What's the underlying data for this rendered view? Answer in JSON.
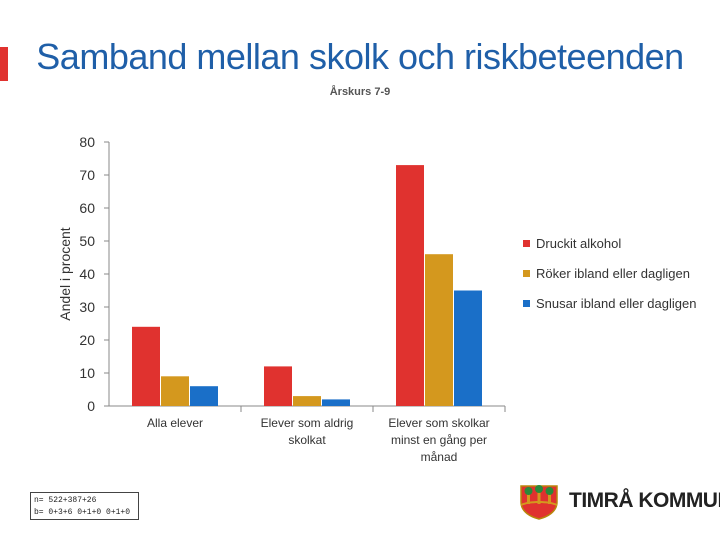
{
  "title": "Samband mellan skolk och riskbeteenden",
  "subtitle": "Årskurs 7-9",
  "note": {
    "line1": "n= 522+387+26",
    "line2": "b= 0+3+6 0+1+0 0+1+0"
  },
  "logo": {
    "text": "TIMRÅ KOMMUN",
    "icon": "coat-of-arms-icon"
  },
  "colors": {
    "accent": "#e0322f",
    "title": "#1f5fa8",
    "series": [
      "#e0322f",
      "#d4981e",
      "#1a6fc8"
    ]
  },
  "chart_data": {
    "type": "bar",
    "title": "",
    "xlabel": "",
    "ylabel": "Andel i procent",
    "ylim": [
      0,
      80
    ],
    "yticks": [
      0,
      10,
      20,
      30,
      40,
      50,
      60,
      70,
      80
    ],
    "grid": false,
    "legend_position": "right",
    "categories": [
      [
        "Alla elever"
      ],
      [
        "Elever som aldrig",
        "skolkat"
      ],
      [
        "Elever som skolkar",
        "minst en gång per",
        "månad"
      ]
    ],
    "series": [
      {
        "name": "Druckit alkohol",
        "values": [
          24,
          12,
          73
        ]
      },
      {
        "name": "Röker ibland eller dagligen",
        "values": [
          9,
          3,
          46
        ]
      },
      {
        "name": "Snusar ibland eller dagligen",
        "values": [
          6,
          2,
          35
        ]
      }
    ]
  }
}
